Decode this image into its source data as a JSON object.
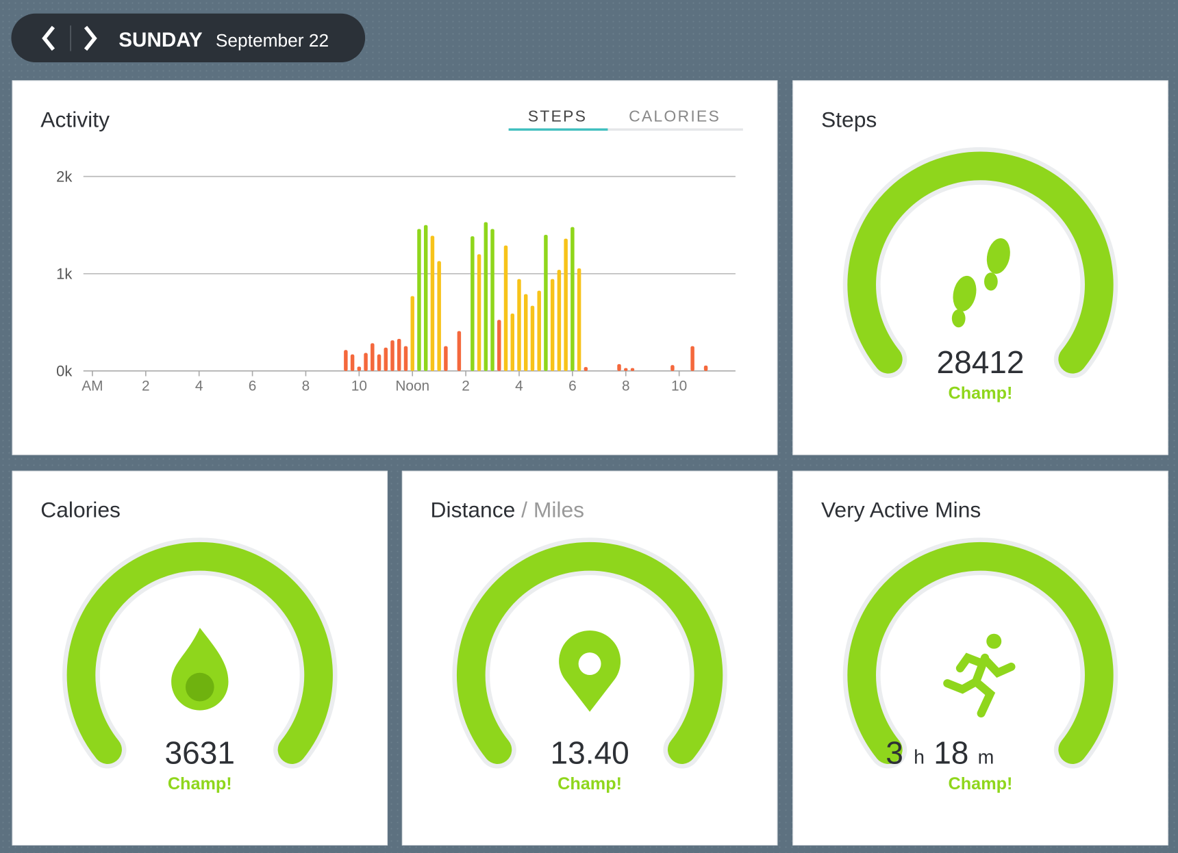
{
  "header": {
    "day": "SUNDAY",
    "date": "September 22"
  },
  "activity": {
    "title": "Activity",
    "tabs": [
      "STEPS",
      "CALORIES"
    ]
  },
  "chart_data": {
    "type": "bar",
    "x": [
      9.5,
      9.75,
      10,
      10.25,
      10.5,
      10.75,
      11,
      11.25,
      11.5,
      11.75,
      12,
      12.25,
      12.5,
      12.75,
      13,
      13.25,
      13.75,
      14.25,
      14.5,
      14.75,
      15,
      15.25,
      15.5,
      15.75,
      16,
      16.25,
      16.5,
      16.75,
      17,
      17.25,
      17.5,
      17.75,
      18,
      18.25,
      18.5,
      19.75,
      20,
      20.25,
      21.75,
      22.5,
      23
    ],
    "values": [
      215,
      170,
      45,
      185,
      285,
      170,
      240,
      315,
      330,
      255,
      770,
      1460,
      1500,
      1390,
      1130,
      255,
      410,
      1385,
      1200,
      1530,
      1460,
      525,
      1290,
      590,
      945,
      790,
      670,
      825,
      1400,
      945,
      1040,
      1360,
      1480,
      1055,
      40,
      70,
      30,
      30,
      60,
      255,
      55
    ],
    "colors": [
      "#f4683c",
      "#f4683c",
      "#f4683c",
      "#f4683c",
      "#f4683c",
      "#f4683c",
      "#f4683c",
      "#f4683c",
      "#f4683c",
      "#f4683c",
      "#f7c31a",
      "#8fd61c",
      "#8fd61c",
      "#f7c31a",
      "#f7c31a",
      "#f4683c",
      "#f4683c",
      "#8fd61c",
      "#f7c31a",
      "#8fd61c",
      "#8fd61c",
      "#f4683c",
      "#f7c31a",
      "#f7c31a",
      "#f7c31a",
      "#f7c31a",
      "#f7c31a",
      "#f7c31a",
      "#8fd61c",
      "#f7c31a",
      "#f7c31a",
      "#f7c31a",
      "#8fd61c",
      "#f7c31a",
      "#f4683c",
      "#f4683c",
      "#f4683c",
      "#f4683c",
      "#f4683c",
      "#f4683c",
      "#f4683c"
    ],
    "xlim": [
      0,
      24
    ],
    "xticks": [
      {
        "value": 0,
        "label": "AM"
      },
      2,
      4,
      6,
      8,
      10,
      {
        "value": 12,
        "label": "Noon"
      },
      {
        "value": 14,
        "label": "2"
      },
      {
        "value": 16,
        "label": "4"
      },
      {
        "value": 18,
        "label": "6"
      },
      {
        "value": 20,
        "label": "8"
      },
      {
        "value": 22,
        "label": "10"
      }
    ],
    "ylim": [
      0,
      2000
    ],
    "yticks": [
      {
        "value": 0,
        "label": "0k"
      },
      {
        "value": 1000,
        "label": "1k"
      },
      {
        "value": 2000,
        "label": "2k"
      }
    ],
    "grid": true
  },
  "steps": {
    "title": "Steps",
    "value": "28412",
    "status": "Champ!"
  },
  "calories": {
    "title": "Calories",
    "value": "3631",
    "status": "Champ!"
  },
  "distance": {
    "title": "Distance",
    "unit": "/ Miles",
    "value": "13.40",
    "status": "Champ!"
  },
  "very_active": {
    "title": "Very Active Mins",
    "hours": "3",
    "hours_unit": "h",
    "minutes": "18",
    "minutes_unit": "m",
    "status": "Champ!"
  }
}
